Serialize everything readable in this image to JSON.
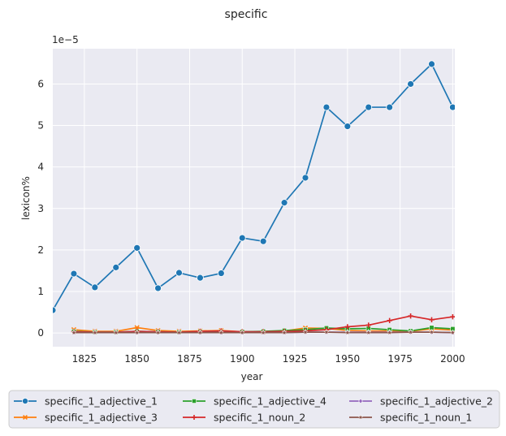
{
  "chart_data": {
    "type": "line",
    "title": "specific",
    "xlabel": "year",
    "ylabel": "lexicon%",
    "y_offset_label": "1e−5",
    "xlim": [
      1810,
      2001
    ],
    "ylim": [
      -0.33,
      6.85
    ],
    "x_ticks": [
      1825,
      1850,
      1875,
      1900,
      1925,
      1950,
      1975,
      2000
    ],
    "y_ticks": [
      0,
      1,
      2,
      3,
      4,
      5,
      6
    ],
    "grid": true,
    "legend_position": "bottom",
    "series": [
      {
        "name": "specific_1_adjective_1",
        "color": "#1f77b4",
        "marker": "circle",
        "x": [
          1810,
          1820,
          1830,
          1840,
          1850,
          1860,
          1870,
          1880,
          1890,
          1900,
          1910,
          1920,
          1930,
          1940,
          1950,
          1960,
          1970,
          1980,
          1990,
          2000
        ],
        "y": [
          0.55,
          1.43,
          1.1,
          1.58,
          2.05,
          1.08,
          1.45,
          1.33,
          1.44,
          2.29,
          2.21,
          3.14,
          3.74,
          5.44,
          4.98,
          5.44,
          5.44,
          6.0,
          6.48,
          5.44
        ]
      },
      {
        "name": "specific_1_adjective_3",
        "color": "#ff7f0e",
        "marker": "x",
        "x": [
          1820,
          1830,
          1840,
          1850,
          1860,
          1870,
          1880,
          1890,
          1900,
          1910,
          1920,
          1930,
          1940,
          1950,
          1960,
          1970,
          1980,
          1990,
          2000
        ],
        "y": [
          0.08,
          0.04,
          0.04,
          0.13,
          0.06,
          0.04,
          0.05,
          0.06,
          0.03,
          0.03,
          0.05,
          0.12,
          0.11,
          0.06,
          0.05,
          0.05,
          0.04,
          0.1,
          0.07
        ]
      },
      {
        "name": "specific_1_adjective_4",
        "color": "#2ca02c",
        "marker": "square",
        "x": [
          1820,
          1830,
          1840,
          1850,
          1860,
          1870,
          1880,
          1890,
          1900,
          1910,
          1920,
          1930,
          1940,
          1950,
          1960,
          1970,
          1980,
          1990,
          2000
        ],
        "y": [
          0.04,
          0.02,
          0.02,
          0.04,
          0.03,
          0.02,
          0.03,
          0.03,
          0.03,
          0.04,
          0.06,
          0.08,
          0.12,
          0.1,
          0.11,
          0.08,
          0.05,
          0.13,
          0.1
        ]
      },
      {
        "name": "specific_1_noun_2",
        "color": "#d62728",
        "marker": "plus",
        "x": [
          1820,
          1830,
          1840,
          1850,
          1860,
          1870,
          1880,
          1890,
          1900,
          1910,
          1920,
          1930,
          1940,
          1950,
          1960,
          1970,
          1980,
          1990,
          2000
        ],
        "y": [
          0.03,
          0.02,
          0.02,
          0.04,
          0.03,
          0.02,
          0.04,
          0.05,
          0.03,
          0.03,
          0.04,
          0.05,
          0.08,
          0.15,
          0.19,
          0.3,
          0.41,
          0.32,
          0.39
        ]
      },
      {
        "name": "specific_1_adjective_2",
        "color": "#9467bd",
        "marker": "diamond",
        "x": [
          1820,
          1830,
          1840,
          1850,
          1860,
          1870,
          1880,
          1890,
          1900,
          1910,
          1920,
          1930,
          1940,
          1950,
          1960,
          1970,
          1980,
          1990,
          2000
        ],
        "y": [
          0.01,
          0.01,
          0.01,
          0.01,
          0.01,
          0.01,
          0.01,
          0.01,
          0.01,
          0.01,
          0.01,
          0.02,
          0.02,
          0.02,
          0.02,
          0.02,
          0.02,
          0.02,
          0.01
        ]
      },
      {
        "name": "specific_1_noun_1",
        "color": "#8c564b",
        "marker": "star",
        "x": [
          1820,
          1830,
          1840,
          1850,
          1860,
          1870,
          1880,
          1890,
          1900,
          1910,
          1920,
          1930,
          1940,
          1950,
          1960,
          1970,
          1980,
          1990,
          2000
        ],
        "y": [
          0.01,
          0.01,
          0.01,
          0.01,
          0.01,
          0.01,
          0.01,
          0.01,
          0.01,
          0.01,
          0.01,
          0.02,
          0.02,
          0.01,
          0.01,
          0.01,
          0.02,
          0.02,
          0.01
        ]
      }
    ]
  }
}
